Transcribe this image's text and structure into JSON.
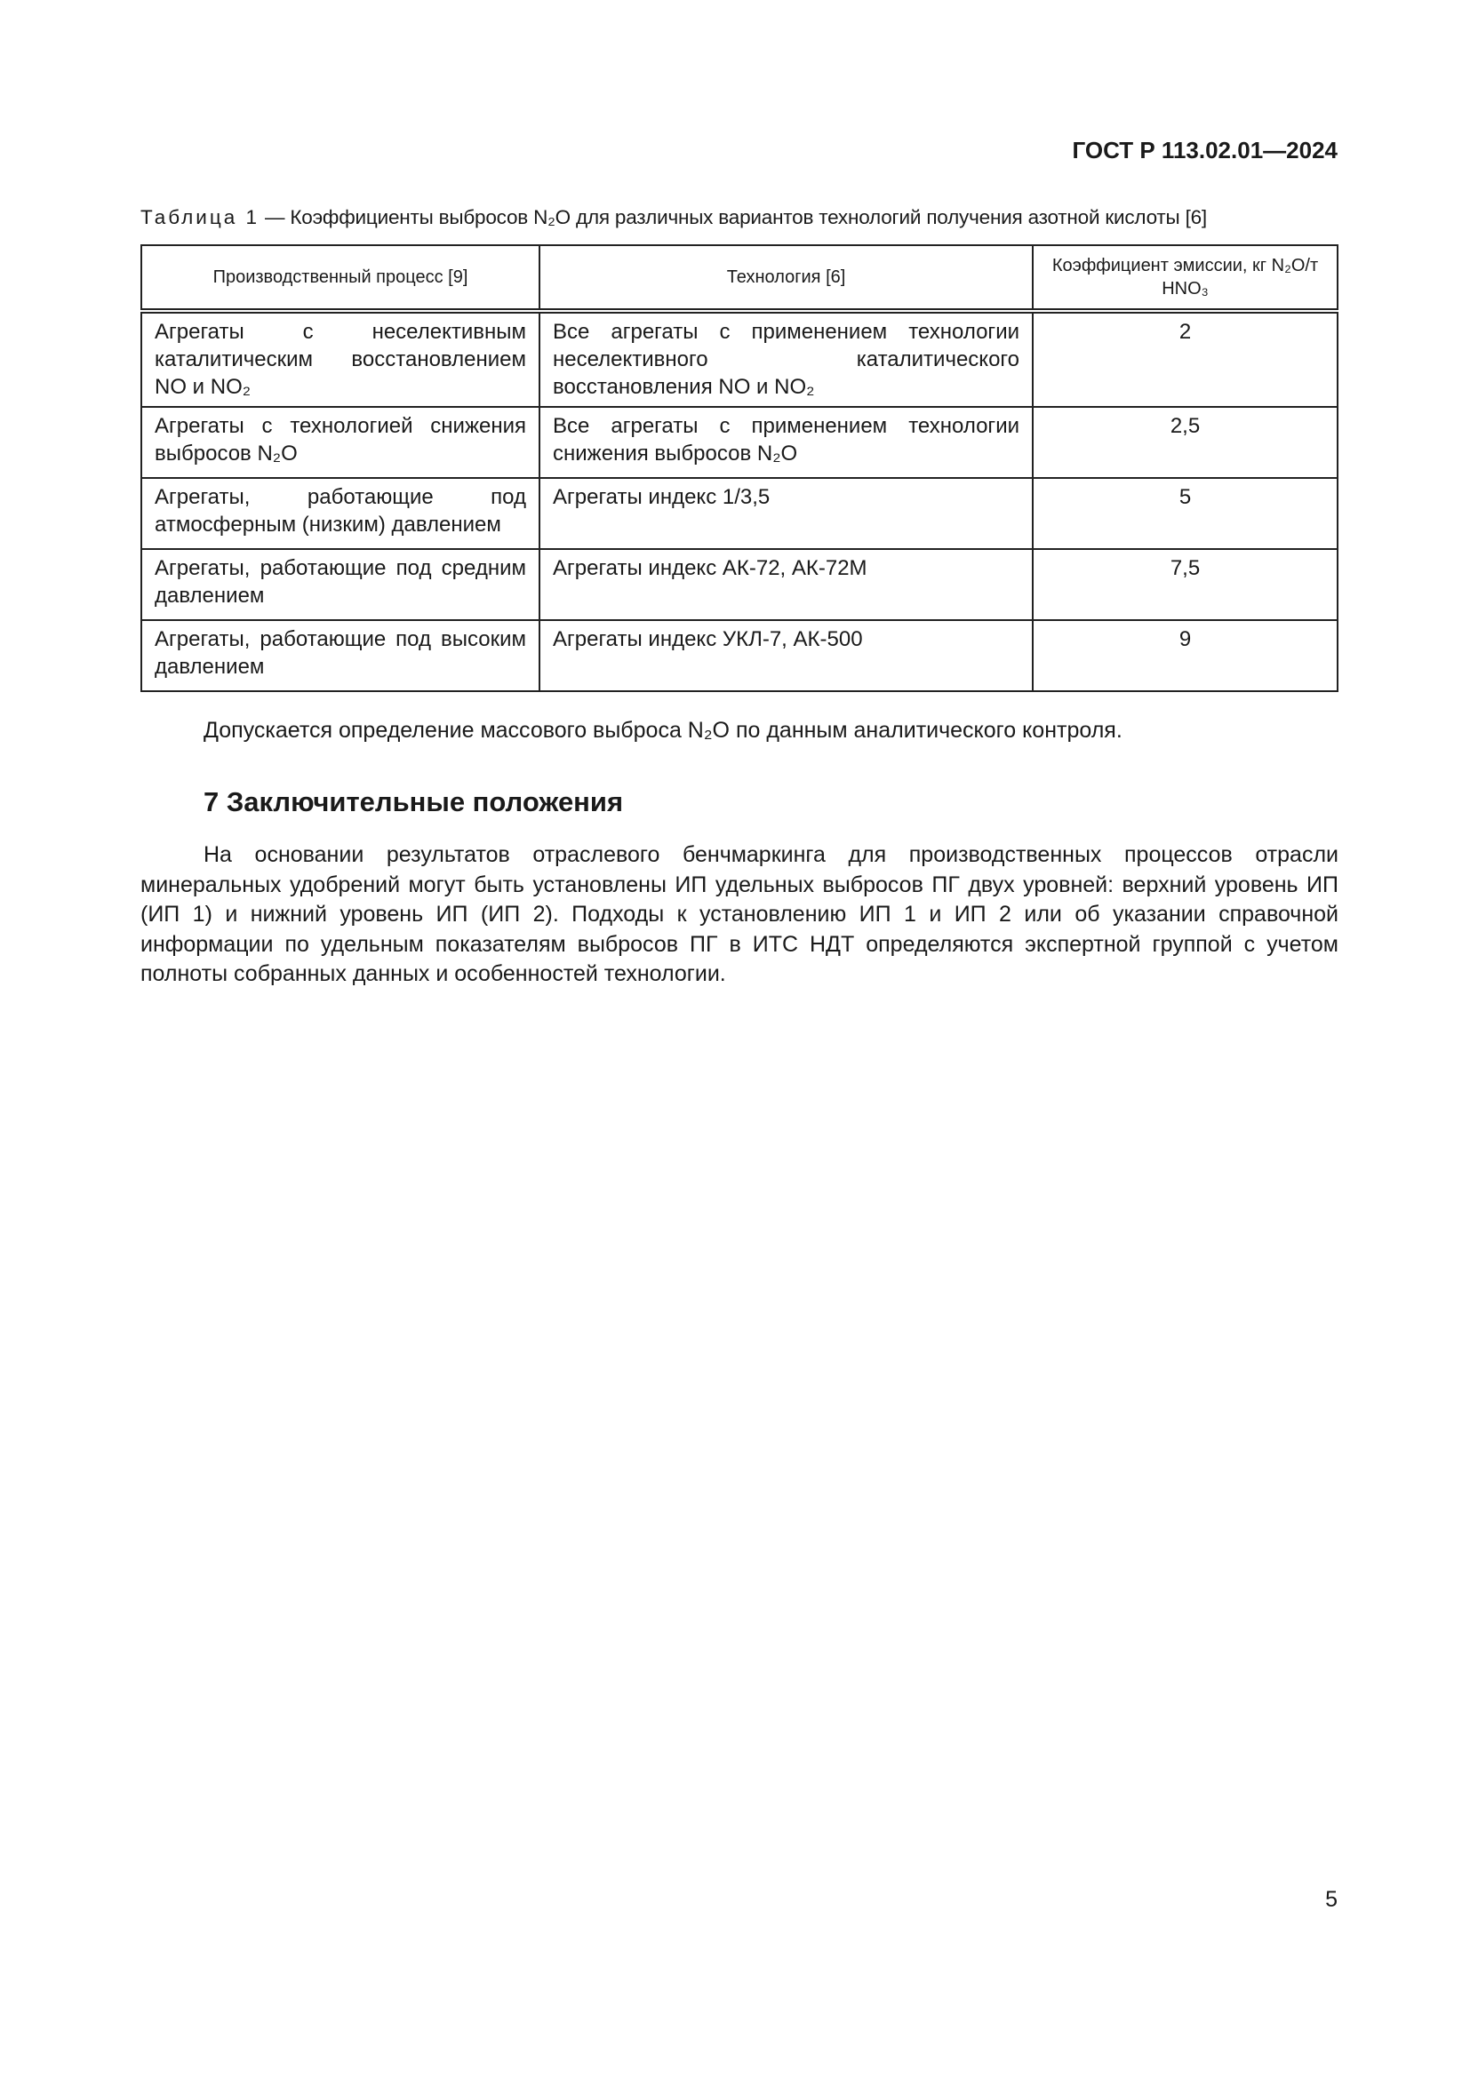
{
  "header": {
    "doc_id": "ГОСТ Р 113.02.01—2024"
  },
  "table": {
    "caption_prefix": "Таблица 1",
    "caption_text": " — Коэффициенты выбросов N₂O для различных вариантов технологий получения азотной кислоты [6]",
    "columns": [
      "Производственный процесс [9]",
      "Технология [6]",
      "Коэффициент эмиссии, кг N₂O/т HNO₃"
    ],
    "rows": [
      {
        "process": "Агрегаты с неселективным каталитическим восстановлением NO и NO₂",
        "technology": "Все агрегаты с применением технологии неселективного каталитического восстановления NO и NO₂",
        "coefficient": "2"
      },
      {
        "process": "Агрегаты с технологией снижения выбросов N₂O",
        "technology": "Все агрегаты с применением технологии снижения выбросов N₂O",
        "coefficient": "2,5"
      },
      {
        "process": "Агрегаты, работающие под атмосферным (низким) давлением",
        "technology": "Агрегаты индекс 1/3,5",
        "coefficient": "5"
      },
      {
        "process": "Агрегаты, работающие под средним давлением",
        "technology": "Агрегаты индекс АК-72, АК-72М",
        "coefficient": "7,5"
      },
      {
        "process": "Агрегаты, работающие под высоким давлением",
        "technology": "Агрегаты индекс УКЛ-7, АК-500",
        "coefficient": "9"
      }
    ]
  },
  "note": "Допускается определение массового выброса N₂O по данным аналитического контроля.",
  "section": {
    "heading": "7  Заключительные положения",
    "paragraph": "На основании результатов отраслевого бенчмаркинга для производственных процессов отрасли минеральных удобрений могут быть установлены ИП удельных выбросов ПГ двух уровней: верхний уровень ИП (ИП 1) и нижний уровень ИП (ИП 2). Подходы к установлению ИП 1 и ИП 2 или об указании справочной информации по удельным показателям выбросов ПГ в ИТС НДТ определяются экспертной группой с учетом полноты собранных данных и особенностей технологии."
  },
  "page_number": "5"
}
